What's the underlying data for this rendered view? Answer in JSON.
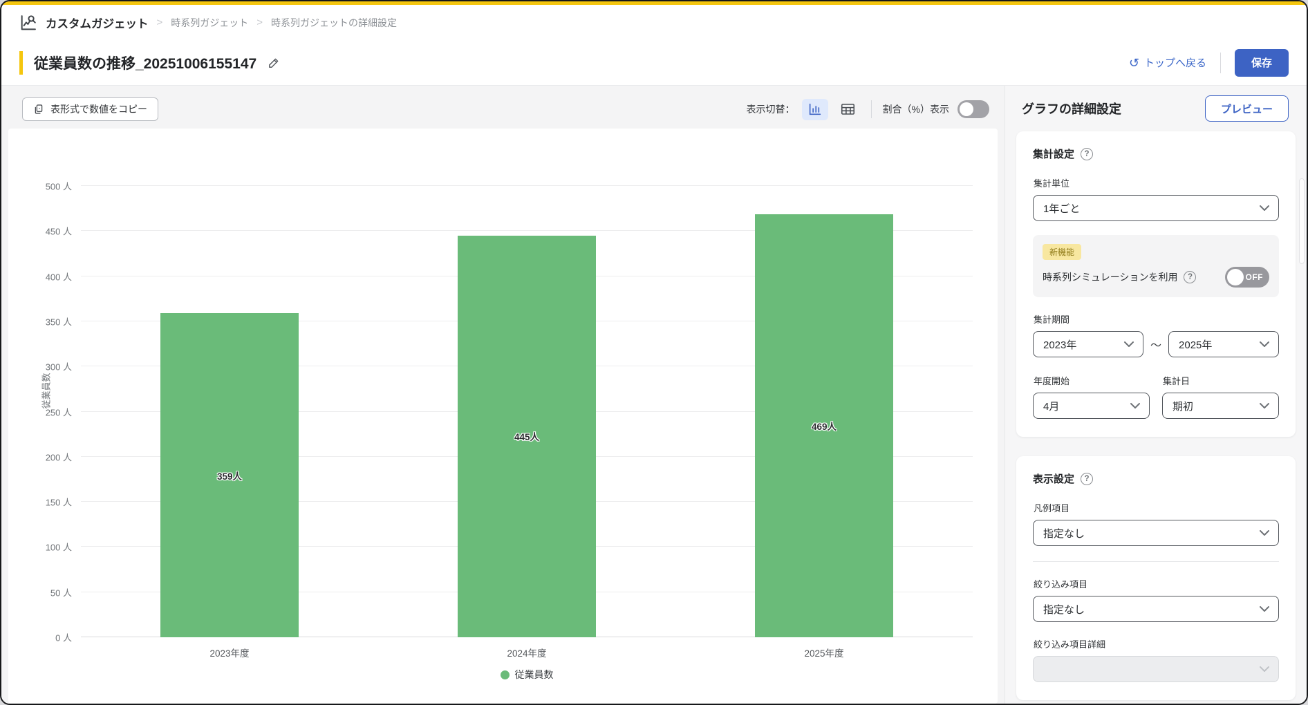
{
  "colors": {
    "brand_yellow": "#f5c60e",
    "accent_blue": "#3d63c4",
    "bar_green": "#6abb79",
    "badge_yellow_bg": "#f8e7a0"
  },
  "topnav": {
    "app_title": "カスタムガジェット",
    "separator": ">",
    "breadcrumbs": [
      "時系列ガジェット",
      "時系列ガジェットの詳細設定"
    ]
  },
  "titlebar": {
    "title": "従業員数の推移_20251006155147",
    "back_link": "トップへ戻る",
    "undo_glyph": "↺",
    "save_label": "保存"
  },
  "toolbar": {
    "copy_label": "表形式で数値をコピー",
    "view_toggle_label": "表示切替：",
    "percent_label": "割合（%）表示",
    "percent_toggle_state": "off",
    "active_view": "chart"
  },
  "chart_data": {
    "type": "bar",
    "categories": [
      "2023年度",
      "2024年度",
      "2025年度"
    ],
    "values": [
      359,
      445,
      469
    ],
    "value_labels": [
      "359人",
      "445人",
      "469人"
    ],
    "ylabel": "従業員数",
    "legend": "従業員数",
    "legend_position": "bottom",
    "ylim": [
      0,
      500
    ],
    "ytick_step": 50,
    "ytick_suffix": " 人",
    "grid": true,
    "bar_color": "#6abb79"
  },
  "sidebar": {
    "header": "グラフの詳細設定",
    "preview_label": "プレビュー",
    "help_glyph": "?",
    "aggregation": {
      "heading": "集計設定",
      "unit_label": "集計単位",
      "unit_value": "1年ごと",
      "new_feature_badge": "新機能",
      "simulation_label": "時系列シミュレーションを利用",
      "simulation_state": "OFF",
      "period_label": "集計期間",
      "period_from": "2023年",
      "period_tilde": "〜",
      "period_to": "2025年",
      "fiscal_start_label": "年度開始",
      "fiscal_start_value": "4月",
      "agg_day_label": "集計日",
      "agg_day_value": "期初"
    },
    "display": {
      "heading": "表示設定",
      "legend_item_label": "凡例項目",
      "legend_item_value": "指定なし",
      "filter_label": "絞り込み項目",
      "filter_value": "指定なし",
      "filter_detail_label": "絞り込み項目詳細",
      "filter_detail_value": ""
    }
  }
}
